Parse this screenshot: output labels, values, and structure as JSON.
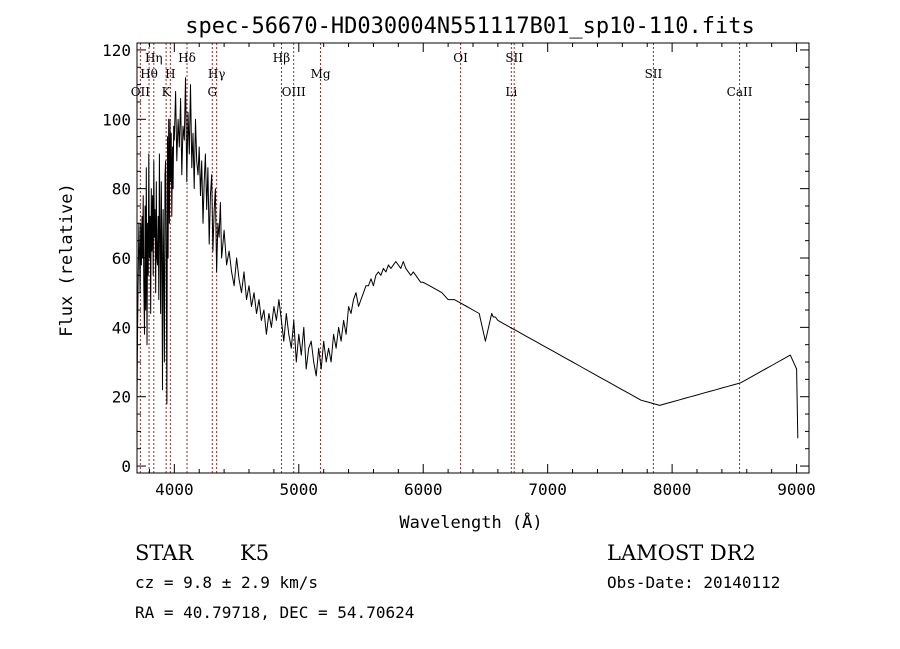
{
  "chart_data": {
    "type": "line",
    "title": "spec-56670-HD030004N551117B01_sp10-110.fits",
    "xlabel": "Wavelength (Å)",
    "ylabel": "Flux (relative)",
    "xlim": [
      3700,
      9100
    ],
    "ylim": [
      -2,
      122
    ],
    "xticks": [
      4000,
      5000,
      6000,
      7000,
      8000,
      9000
    ],
    "yticks": [
      0,
      20,
      40,
      60,
      80,
      100,
      120
    ],
    "grid": false,
    "line_color": "#000000",
    "marker_color": "#aa2222",
    "series": [
      {
        "x": [
          3700,
          3705,
          3710,
          3715,
          3720,
          3725,
          3730,
          3735,
          3740,
          3745,
          3750,
          3755,
          3760,
          3765,
          3770,
          3775,
          3780,
          3785,
          3790,
          3795,
          3800,
          3805,
          3810,
          3815,
          3820,
          3825,
          3830,
          3835,
          3840,
          3845,
          3850,
          3855,
          3860,
          3865,
          3870,
          3875,
          3880,
          3885,
          3890,
          3895,
          3900,
          3905,
          3910,
          3915,
          3920,
          3925,
          3930,
          3935,
          3940,
          3945,
          3950,
          3955,
          3960,
          3965,
          3970,
          3975,
          3980,
          3985,
          3990,
          3995,
          4000,
          4010,
          4020,
          4030,
          4040,
          4050,
          4060,
          4070,
          4080,
          4090,
          4100,
          4110,
          4120,
          4130,
          4140,
          4150,
          4160,
          4170,
          4180,
          4190,
          4200,
          4210,
          4220,
          4230,
          4240,
          4250,
          4260,
          4270,
          4280,
          4290,
          4300,
          4310,
          4320,
          4330,
          4340,
          4350,
          4360,
          4370,
          4380,
          4390,
          4400,
          4420,
          4440,
          4460,
          4480,
          4500,
          4520,
          4540,
          4560,
          4580,
          4600,
          4620,
          4640,
          4660,
          4680,
          4700,
          4720,
          4740,
          4760,
          4780,
          4800,
          4820,
          4840,
          4860,
          4880,
          4900,
          4920,
          4940,
          4960,
          4980,
          5000,
          5020,
          5040,
          5060,
          5080,
          5100,
          5120,
          5140,
          5160,
          5180,
          5200,
          5220,
          5240,
          5260,
          5280,
          5300,
          5320,
          5340,
          5360,
          5380,
          5400,
          5420,
          5440,
          5460,
          5480,
          5500,
          5520,
          5540,
          5560,
          5580,
          5600,
          5620,
          5640,
          5660,
          5680,
          5700,
          5720,
          5740,
          5760,
          5780,
          5800,
          5820,
          5840,
          5860,
          5880,
          5900,
          5920,
          5940,
          5960,
          5980,
          6000,
          6050,
          6100,
          6150,
          6200,
          6250,
          6300,
          6350,
          6400,
          6450,
          6500,
          6550,
          6563,
          6580,
          6600,
          6650,
          6700,
          6750,
          6800,
          6850,
          6900,
          6950,
          7000,
          7050,
          7100,
          7150,
          7200,
          7250,
          7300,
          7350,
          7400,
          7450,
          7500,
          7550,
          7600,
          7650,
          7700,
          7750,
          7800,
          7850,
          7900,
          7950,
          8000,
          8050,
          8100,
          8150,
          8200,
          8250,
          8300,
          8350,
          8400,
          8450,
          8500,
          8550,
          8600,
          8650,
          8700,
          8750,
          8800,
          8850,
          8900,
          8950,
          9000,
          9010
        ],
        "y": [
          18,
          40,
          55,
          70,
          62,
          50,
          70,
          58,
          72,
          60,
          78,
          52,
          38,
          75,
          45,
          86,
          35,
          70,
          55,
          90,
          60,
          72,
          44,
          80,
          62,
          78,
          55,
          88,
          66,
          74,
          50,
          82,
          60,
          58,
          72,
          48,
          90,
          68,
          44,
          82,
          60,
          22,
          74,
          55,
          30,
          84,
          88,
          62,
          18,
          95,
          60,
          100,
          70,
          100,
          82,
          96,
          72,
          92,
          80,
          98,
          94,
          108,
          88,
          100,
          92,
          106,
          84,
          98,
          94,
          112,
          82,
          102,
          90,
          110,
          86,
          96,
          80,
          100,
          88,
          84,
          92,
          78,
          88,
          70,
          82,
          90,
          74,
          86,
          64,
          78,
          84,
          62,
          74,
          80,
          56,
          70,
          66,
          76,
          60,
          64,
          68,
          58,
          62,
          56,
          52,
          60,
          54,
          50,
          56,
          48,
          52,
          46,
          50,
          44,
          48,
          42,
          45,
          38,
          44,
          40,
          46,
          42,
          48,
          42,
          36,
          44,
          38,
          34,
          42,
          30,
          38,
          32,
          40,
          28,
          34,
          36,
          30,
          26,
          34,
          28,
          36,
          30,
          34,
          30,
          38,
          34,
          40,
          36,
          42,
          38,
          46,
          44,
          48,
          50,
          46,
          48,
          50,
          52,
          52,
          54,
          52,
          55,
          56,
          55,
          57,
          56,
          58,
          57,
          58,
          59,
          58,
          57,
          59,
          57,
          56,
          55,
          56,
          55,
          54,
          53,
          53,
          52,
          51,
          50,
          48,
          48,
          47,
          46,
          45,
          44,
          36,
          44,
          43,
          43,
          42,
          41,
          40,
          39,
          38,
          37,
          36,
          35,
          34,
          33,
          32,
          31,
          30,
          29,
          28,
          27,
          26,
          25,
          24,
          23,
          22,
          21,
          20,
          19,
          18.5,
          18,
          17.5,
          18,
          18.5,
          19,
          19.5,
          20,
          20.5,
          21,
          21.5,
          22,
          22.5,
          23,
          23.5,
          24,
          25,
          26,
          27,
          28,
          29,
          30,
          31,
          32,
          28,
          8
        ]
      }
    ],
    "markers": [
      {
        "label": "OII",
        "x": 3727,
        "row": 3
      },
      {
        "label": "Hθ",
        "x": 3797,
        "row": 2
      },
      {
        "label": "Hη",
        "x": 3835,
        "row": 1
      },
      {
        "label": "H",
        "x": 3968,
        "row": 2
      },
      {
        "label": "K",
        "x": 3934,
        "row": 3
      },
      {
        "label": "Hδ",
        "x": 4102,
        "row": 1
      },
      {
        "label": "Hγ",
        "x": 4340,
        "row": 2
      },
      {
        "label": "G",
        "x": 4305,
        "row": 3
      },
      {
        "label": "Hβ",
        "x": 4861,
        "row": 1
      },
      {
        "label": "OIII",
        "x": 4959,
        "row": 3
      },
      {
        "label": "Mg",
        "x": 5175,
        "row": 2
      },
      {
        "label": "OI",
        "x": 6300,
        "row": 1
      },
      {
        "label": "SII",
        "x": 6731,
        "row": 1
      },
      {
        "label": "Li",
        "x": 6708,
        "row": 3
      },
      {
        "label": "SII",
        "x": 7850,
        "row": 2
      },
      {
        "label": "CaII",
        "x": 8542,
        "row": 3
      }
    ]
  },
  "footer": {
    "object_class": "STAR",
    "subclass": "K5",
    "survey": "LAMOST DR2",
    "cz": "cz = 9.8 ± 2.9 km/s",
    "obs_date": "Obs-Date: 20140112",
    "coords": "RA =  40.79718, DEC =  54.70624"
  }
}
